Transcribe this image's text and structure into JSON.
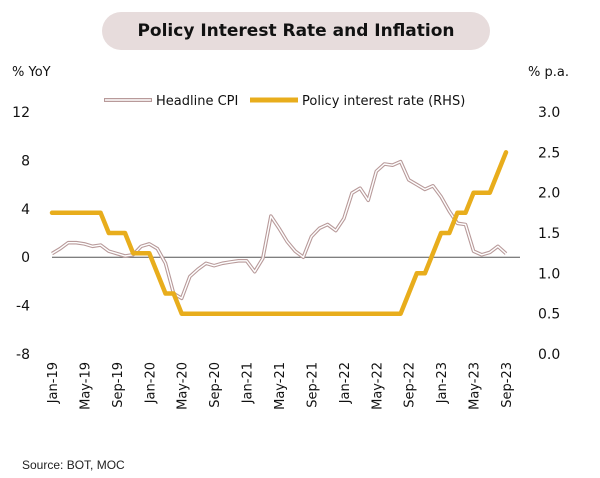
{
  "chart_data": {
    "type": "line",
    "title": "Policy Interest Rate and Inflation",
    "source": "Source: BOT, MOC",
    "colors": {
      "cpi": "#b89a9a",
      "policy": "#e8ad1c",
      "title_bg": "#e7dcdc",
      "zero_line": "#555555"
    },
    "left_axis": {
      "label": "% YoY",
      "min": -8,
      "max": 12,
      "ticks": [
        "12",
        "8",
        "4",
        "0",
        "-4",
        "-8"
      ]
    },
    "right_axis": {
      "label": "% p.a.",
      "min": 0,
      "max": 3,
      "ticks": [
        "3.0",
        "2.5",
        "2.0",
        "1.5",
        "1.0",
        "0.5",
        "0.0"
      ]
    },
    "x_tick_labels": [
      "Jan-19",
      "May-19",
      "Sep-19",
      "Jan-20",
      "May-20",
      "Sep-20",
      "Jan-21",
      "May-21",
      "Sep-21",
      "Jan-22",
      "May-22",
      "Sep-22",
      "Jan-23",
      "May-23",
      "Sep-23"
    ],
    "legend": {
      "placement": "top-center"
    },
    "series": [
      {
        "name": "Headline CPI",
        "axis": "left",
        "x": [
          "Jan-19",
          "Feb-19",
          "Mar-19",
          "Apr-19",
          "May-19",
          "Jun-19",
          "Jul-19",
          "Aug-19",
          "Sep-19",
          "Oct-19",
          "Nov-19",
          "Dec-19",
          "Jan-20",
          "Feb-20",
          "Mar-20",
          "Apr-20",
          "May-20",
          "Jun-20",
          "Jul-20",
          "Aug-20",
          "Sep-20",
          "Oct-20",
          "Nov-20",
          "Dec-20",
          "Jan-21",
          "Feb-21",
          "Mar-21",
          "Apr-21",
          "May-21",
          "Jun-21",
          "Jul-21",
          "Aug-21",
          "Sep-21",
          "Oct-21",
          "Nov-21",
          "Dec-21",
          "Jan-22",
          "Feb-22",
          "Mar-22",
          "Apr-22",
          "May-22",
          "Jun-22",
          "Jul-22",
          "Aug-22",
          "Sep-22",
          "Oct-22",
          "Nov-22",
          "Dec-22",
          "Jan-23",
          "Feb-23",
          "Mar-23",
          "Apr-23",
          "May-23",
          "Jun-23",
          "Jul-23",
          "Aug-23",
          "Sep-23"
        ],
        "values": [
          0.3,
          0.7,
          1.2,
          1.2,
          1.1,
          0.9,
          1.0,
          0.5,
          0.3,
          0.1,
          0.2,
          0.9,
          1.1,
          0.7,
          -0.5,
          -3.0,
          -3.4,
          -1.6,
          -1.0,
          -0.5,
          -0.7,
          -0.5,
          -0.4,
          -0.3,
          -0.3,
          -1.2,
          -0.1,
          3.4,
          2.4,
          1.3,
          0.5,
          0.0,
          1.7,
          2.4,
          2.7,
          2.2,
          3.2,
          5.3,
          5.7,
          4.7,
          7.1,
          7.7,
          7.6,
          7.9,
          6.4,
          6.0,
          5.6,
          5.9,
          5.0,
          3.8,
          2.8,
          2.7,
          0.5,
          0.2,
          0.4,
          0.9,
          0.3
        ]
      },
      {
        "name": "Policy interest rate (RHS)",
        "axis": "right",
        "x": [
          "Jan-19",
          "Feb-19",
          "Mar-19",
          "Apr-19",
          "May-19",
          "Jun-19",
          "Jul-19",
          "Aug-19",
          "Sep-19",
          "Oct-19",
          "Nov-19",
          "Dec-19",
          "Jan-20",
          "Feb-20",
          "Mar-20",
          "Apr-20",
          "May-20",
          "Jun-20",
          "Jul-20",
          "Aug-20",
          "Sep-20",
          "Oct-20",
          "Nov-20",
          "Dec-20",
          "Jan-21",
          "Feb-21",
          "Mar-21",
          "Apr-21",
          "May-21",
          "Jun-21",
          "Jul-21",
          "Aug-21",
          "Sep-21",
          "Oct-21",
          "Nov-21",
          "Dec-21",
          "Jan-22",
          "Feb-22",
          "Mar-22",
          "Apr-22",
          "May-22",
          "Jun-22",
          "Jul-22",
          "Aug-22",
          "Sep-22",
          "Oct-22",
          "Nov-22",
          "Dec-22",
          "Jan-23",
          "Feb-23",
          "Mar-23",
          "Apr-23",
          "May-23",
          "Jun-23",
          "Jul-23",
          "Aug-23",
          "Sep-23"
        ],
        "values": [
          1.75,
          1.75,
          1.75,
          1.75,
          1.75,
          1.75,
          1.75,
          1.5,
          1.5,
          1.5,
          1.25,
          1.25,
          1.25,
          1.0,
          0.75,
          0.75,
          0.5,
          0.5,
          0.5,
          0.5,
          0.5,
          0.5,
          0.5,
          0.5,
          0.5,
          0.5,
          0.5,
          0.5,
          0.5,
          0.5,
          0.5,
          0.5,
          0.5,
          0.5,
          0.5,
          0.5,
          0.5,
          0.5,
          0.5,
          0.5,
          0.5,
          0.5,
          0.5,
          0.5,
          0.75,
          1.0,
          1.0,
          1.25,
          1.5,
          1.5,
          1.75,
          1.75,
          2.0,
          2.0,
          2.0,
          2.25,
          2.5
        ]
      }
    ]
  }
}
